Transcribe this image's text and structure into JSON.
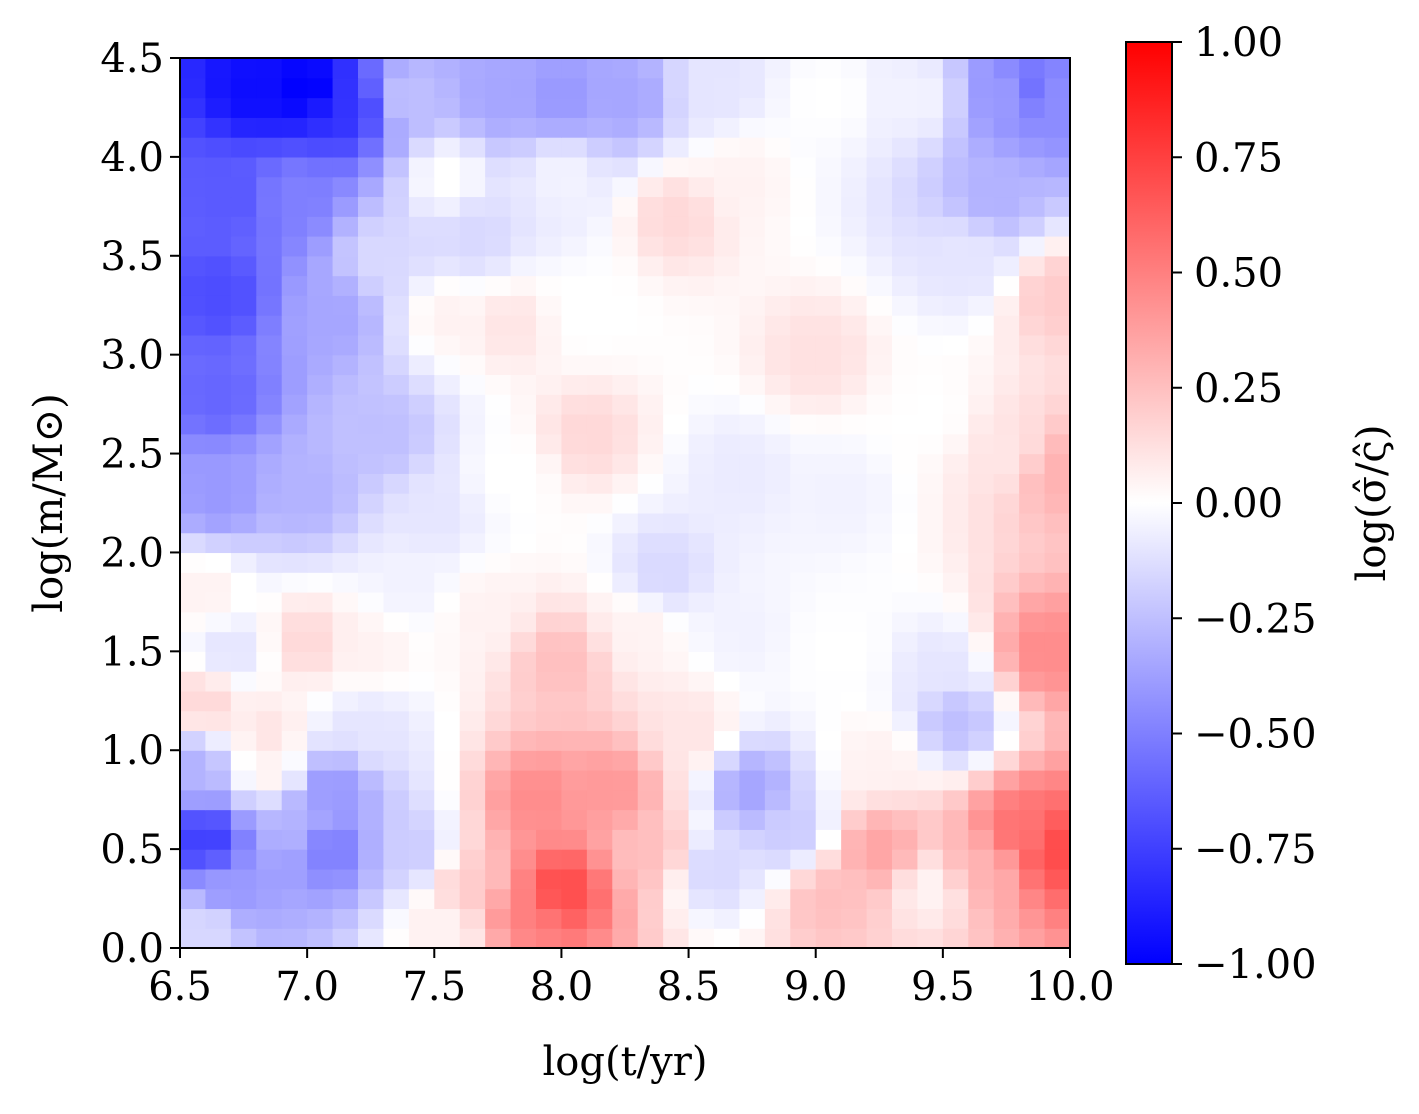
{
  "chart_data": {
    "type": "heatmap",
    "title": "",
    "xlabel": "log(t/yr)",
    "ylabel": "log(m/M⊙)",
    "xlim": [
      6.5,
      10.0
    ],
    "ylim": [
      0.0,
      4.5
    ],
    "xticks": [
      6.5,
      7.0,
      7.5,
      8.0,
      8.5,
      9.0,
      9.5,
      10.0
    ],
    "xtick_labels": [
      "6.5",
      "7.0",
      "7.5",
      "8.0",
      "8.5",
      "9.0",
      "9.5",
      "10.0"
    ],
    "yticks": [
      0.0,
      0.5,
      1.0,
      1.5,
      2.0,
      2.5,
      3.0,
      3.5,
      4.0,
      4.5
    ],
    "ytick_labels": [
      "0.0",
      "0.5",
      "1.0",
      "1.5",
      "2.0",
      "2.5",
      "3.0",
      "3.5",
      "4.0",
      "4.5"
    ],
    "colorbar": {
      "label": "log(σ̂/ς̂)",
      "colormap": "bwr",
      "vmin": -1.0,
      "vmax": 1.0,
      "ticks": [
        -1.0,
        -0.75,
        -0.5,
        -0.25,
        0.0,
        0.25,
        0.5,
        0.75,
        1.0
      ],
      "tick_labels": [
        "−1.00",
        "−0.75",
        "−0.50",
        "−0.25",
        "0.00",
        "0.25",
        "0.50",
        "0.75",
        "1.00"
      ]
    },
    "grid": false,
    "colors": {
      "low": "#0000ff",
      "mid": "#ffffff",
      "high": "#ff0000"
    },
    "field_points": [
      {
        "x": 6.8,
        "y": 4.35,
        "v": -0.95
      },
      {
        "x": 7.0,
        "y": 4.35,
        "v": -1.0
      },
      {
        "x": 7.15,
        "y": 4.25,
        "v": -0.8
      },
      {
        "x": 6.7,
        "y": 3.8,
        "v": -0.65
      },
      {
        "x": 6.65,
        "y": 3.3,
        "v": -0.7
      },
      {
        "x": 6.65,
        "y": 2.8,
        "v": -0.6
      },
      {
        "x": 6.65,
        "y": 2.3,
        "v": -0.4
      },
      {
        "x": 6.95,
        "y": 3.8,
        "v": -0.5
      },
      {
        "x": 7.1,
        "y": 3.2,
        "v": -0.35
      },
      {
        "x": 7.3,
        "y": 3.5,
        "v": -0.15
      },
      {
        "x": 7.3,
        "y": 2.6,
        "v": -0.25
      },
      {
        "x": 7.0,
        "y": 2.3,
        "v": -0.3
      },
      {
        "x": 7.4,
        "y": 4.3,
        "v": -0.25
      },
      {
        "x": 7.55,
        "y": 3.9,
        "v": 0.0
      },
      {
        "x": 7.75,
        "y": 4.3,
        "v": -0.35
      },
      {
        "x": 8.0,
        "y": 4.3,
        "v": -0.4
      },
      {
        "x": 8.25,
        "y": 4.3,
        "v": -0.35
      },
      {
        "x": 8.0,
        "y": 3.9,
        "v": -0.05
      },
      {
        "x": 7.65,
        "y": 3.6,
        "v": -0.15
      },
      {
        "x": 7.8,
        "y": 3.15,
        "v": 0.1
      },
      {
        "x": 7.55,
        "y": 3.2,
        "v": 0.05
      },
      {
        "x": 8.1,
        "y": 3.2,
        "v": 0.0
      },
      {
        "x": 8.45,
        "y": 3.7,
        "v": 0.15
      },
      {
        "x": 8.7,
        "y": 3.9,
        "v": 0.05
      },
      {
        "x": 8.6,
        "y": 4.35,
        "v": -0.1
      },
      {
        "x": 9.05,
        "y": 4.3,
        "v": 0.0
      },
      {
        "x": 9.4,
        "y": 4.3,
        "v": -0.05
      },
      {
        "x": 9.75,
        "y": 4.3,
        "v": -0.4
      },
      {
        "x": 9.85,
        "y": 4.35,
        "v": -0.55
      },
      {
        "x": 9.95,
        "y": 4.3,
        "v": -0.45
      },
      {
        "x": 9.7,
        "y": 3.8,
        "v": -0.3
      },
      {
        "x": 9.6,
        "y": 3.5,
        "v": -0.1
      },
      {
        "x": 9.95,
        "y": 3.3,
        "v": 0.2
      },
      {
        "x": 9.95,
        "y": 2.4,
        "v": 0.3
      },
      {
        "x": 9.75,
        "y": 2.5,
        "v": 0.1
      },
      {
        "x": 9.45,
        "y": 2.7,
        "v": 0.0
      },
      {
        "x": 9.0,
        "y": 3.0,
        "v": 0.12
      },
      {
        "x": 9.1,
        "y": 2.3,
        "v": -0.05
      },
      {
        "x": 8.7,
        "y": 2.4,
        "v": -0.08
      },
      {
        "x": 8.1,
        "y": 2.6,
        "v": 0.15
      },
      {
        "x": 7.8,
        "y": 2.4,
        "v": 0.0
      },
      {
        "x": 7.5,
        "y": 2.2,
        "v": -0.1
      },
      {
        "x": 6.6,
        "y": 1.8,
        "v": 0.05
      },
      {
        "x": 6.7,
        "y": 1.5,
        "v": -0.1
      },
      {
        "x": 6.6,
        "y": 1.25,
        "v": 0.15
      },
      {
        "x": 7.0,
        "y": 1.55,
        "v": 0.15
      },
      {
        "x": 7.25,
        "y": 1.5,
        "v": 0.05
      },
      {
        "x": 7.4,
        "y": 1.85,
        "v": -0.05
      },
      {
        "x": 7.7,
        "y": 1.7,
        "v": 0.05
      },
      {
        "x": 8.0,
        "y": 1.45,
        "v": 0.25
      },
      {
        "x": 8.3,
        "y": 1.6,
        "v": 0.05
      },
      {
        "x": 8.4,
        "y": 1.9,
        "v": -0.15
      },
      {
        "x": 8.7,
        "y": 1.6,
        "v": -0.05
      },
      {
        "x": 9.1,
        "y": 1.5,
        "v": 0.0
      },
      {
        "x": 9.5,
        "y": 1.4,
        "v": -0.1
      },
      {
        "x": 9.55,
        "y": 1.15,
        "v": -0.25
      },
      {
        "x": 9.9,
        "y": 1.5,
        "v": 0.45
      },
      {
        "x": 9.95,
        "y": 0.5,
        "v": 0.7
      },
      {
        "x": 9.8,
        "y": 0.6,
        "v": 0.55
      },
      {
        "x": 9.65,
        "y": 0.4,
        "v": 0.3
      },
      {
        "x": 9.45,
        "y": 0.3,
        "v": 0.05
      },
      {
        "x": 9.25,
        "y": 0.5,
        "v": 0.35
      },
      {
        "x": 9.05,
        "y": 0.25,
        "v": 0.25
      },
      {
        "x": 8.9,
        "y": 0.6,
        "v": -0.2
      },
      {
        "x": 8.75,
        "y": 0.8,
        "v": -0.35
      },
      {
        "x": 8.6,
        "y": 0.4,
        "v": -0.15
      },
      {
        "x": 8.35,
        "y": 0.5,
        "v": 0.25
      },
      {
        "x": 8.2,
        "y": 0.8,
        "v": 0.4
      },
      {
        "x": 8.0,
        "y": 0.3,
        "v": 0.7
      },
      {
        "x": 7.85,
        "y": 0.2,
        "v": 0.5
      },
      {
        "x": 7.9,
        "y": 0.75,
        "v": 0.45
      },
      {
        "x": 7.65,
        "y": 0.3,
        "v": 0.2
      },
      {
        "x": 7.55,
        "y": 0.1,
        "v": 0.05
      },
      {
        "x": 7.4,
        "y": 0.5,
        "v": -0.2
      },
      {
        "x": 7.1,
        "y": 0.5,
        "v": -0.5
      },
      {
        "x": 7.1,
        "y": 0.8,
        "v": -0.4
      },
      {
        "x": 6.95,
        "y": 0.65,
        "v": -0.3
      },
      {
        "x": 6.85,
        "y": 0.9,
        "v": 0.05
      },
      {
        "x": 6.7,
        "y": 0.3,
        "v": -0.4
      },
      {
        "x": 6.6,
        "y": 0.55,
        "v": -0.75
      },
      {
        "x": 6.6,
        "y": 0.1,
        "v": -0.15
      },
      {
        "x": 6.55,
        "y": 0.9,
        "v": -0.3
      },
      {
        "x": 6.85,
        "y": 1.1,
        "v": 0.1
      },
      {
        "x": 7.25,
        "y": 1.1,
        "v": -0.1
      },
      {
        "x": 8.5,
        "y": 1.1,
        "v": 0.1
      },
      {
        "x": 9.25,
        "y": 0.95,
        "v": 0.05
      }
    ]
  }
}
